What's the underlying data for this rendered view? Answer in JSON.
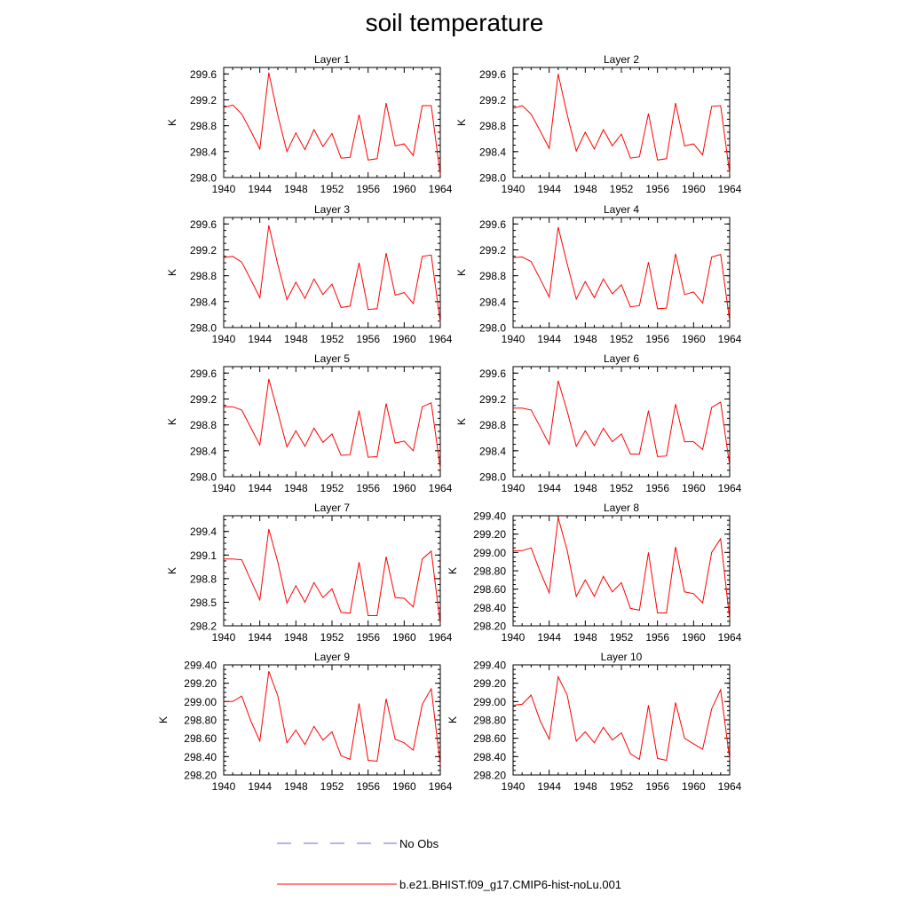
{
  "title": "soil temperature",
  "colors": {
    "series": "#ff0000",
    "obs": "#6a6acd",
    "axis": "#000000"
  },
  "legend": {
    "obs_label": "No Obs",
    "model_label": "b.e21.BHIST.f09_g17.CMIP6-hist-noLu.001"
  },
  "chart_data": [
    {
      "type": "line",
      "title": "Layer 1",
      "ylabel": "K",
      "xlim": [
        1940,
        1964
      ],
      "ylim": [
        298.0,
        299.7
      ],
      "xticks": [
        "1940",
        "1944",
        "1948",
        "1952",
        "1956",
        "1960",
        "1964"
      ],
      "yticks": [
        "298.0",
        "298.4",
        "298.8",
        "299.2",
        "299.6"
      ],
      "x": [
        1940,
        1941,
        1942,
        1943,
        1944,
        1945,
        1946,
        1947,
        1948,
        1949,
        1950,
        1951,
        1952,
        1953,
        1954,
        1955,
        1956,
        1957,
        1958,
        1959,
        1960,
        1961,
        1962,
        1963,
        1964
      ],
      "series": [
        {
          "name": "b.e21.BHIST.f09_g17.CMIP6-hist-noLu.001",
          "values": [
            299.08,
            299.12,
            298.98,
            298.72,
            298.44,
            299.62,
            298.96,
            298.4,
            298.69,
            298.43,
            298.74,
            298.48,
            298.68,
            298.3,
            298.31,
            298.97,
            298.27,
            298.29,
            299.15,
            298.49,
            298.52,
            298.34,
            299.11,
            299.11,
            298.04
          ]
        }
      ]
    },
    {
      "type": "line",
      "title": "Layer 2",
      "ylabel": "K",
      "xlim": [
        1940,
        1964
      ],
      "ylim": [
        298.0,
        299.7
      ],
      "xticks": [
        "1940",
        "1944",
        "1948",
        "1952",
        "1956",
        "1960",
        "1964"
      ],
      "yticks": [
        "298.0",
        "298.4",
        "298.8",
        "299.2",
        "299.6"
      ],
      "x": [
        1940,
        1941,
        1942,
        1943,
        1944,
        1945,
        1946,
        1947,
        1948,
        1949,
        1950,
        1951,
        1952,
        1953,
        1954,
        1955,
        1956,
        1957,
        1958,
        1959,
        1960,
        1961,
        1962,
        1963,
        1964
      ],
      "series": [
        {
          "name": "b.e21.BHIST.f09_g17.CMIP6-hist-noLu.001",
          "values": [
            299.07,
            299.11,
            298.98,
            298.72,
            298.45,
            299.6,
            298.97,
            298.41,
            298.7,
            298.44,
            298.74,
            298.49,
            298.67,
            298.3,
            298.32,
            298.99,
            298.27,
            298.29,
            299.15,
            298.49,
            298.52,
            298.35,
            299.1,
            299.11,
            298.06
          ]
        }
      ]
    },
    {
      "type": "line",
      "title": "Layer 3",
      "ylabel": "K",
      "xlim": [
        1940,
        1964
      ],
      "ylim": [
        298.0,
        299.7
      ],
      "xticks": [
        "1940",
        "1944",
        "1948",
        "1952",
        "1956",
        "1960",
        "1964"
      ],
      "yticks": [
        "298.0",
        "298.4",
        "298.8",
        "299.2",
        "299.6"
      ],
      "x": [
        1940,
        1941,
        1942,
        1943,
        1944,
        1945,
        1946,
        1947,
        1948,
        1949,
        1950,
        1951,
        1952,
        1953,
        1954,
        1955,
        1956,
        1957,
        1958,
        1959,
        1960,
        1961,
        1962,
        1963,
        1964
      ],
      "series": [
        {
          "name": "b.e21.BHIST.f09_g17.CMIP6-hist-noLu.001",
          "values": [
            299.08,
            299.1,
            299.01,
            298.74,
            298.46,
            299.58,
            298.97,
            298.43,
            298.7,
            298.45,
            298.75,
            298.51,
            298.67,
            298.31,
            298.33,
            299.0,
            298.28,
            298.29,
            299.15,
            298.5,
            298.54,
            298.37,
            299.1,
            299.12,
            298.08
          ]
        }
      ]
    },
    {
      "type": "line",
      "title": "Layer 4",
      "ylabel": "K",
      "xlim": [
        1940,
        1964
      ],
      "ylim": [
        298.0,
        299.7
      ],
      "xticks": [
        "1940",
        "1944",
        "1948",
        "1952",
        "1956",
        "1960",
        "1964"
      ],
      "yticks": [
        "298.0",
        "298.4",
        "298.8",
        "299.2",
        "299.6"
      ],
      "x": [
        1940,
        1941,
        1942,
        1943,
        1944,
        1945,
        1946,
        1947,
        1948,
        1949,
        1950,
        1951,
        1952,
        1953,
        1954,
        1955,
        1956,
        1957,
        1958,
        1959,
        1960,
        1961,
        1962,
        1963,
        1964
      ],
      "series": [
        {
          "name": "b.e21.BHIST.f09_g17.CMIP6-hist-noLu.001",
          "values": [
            299.08,
            299.09,
            299.02,
            298.75,
            298.47,
            299.55,
            298.98,
            298.44,
            298.71,
            298.46,
            298.75,
            298.52,
            298.66,
            298.32,
            298.34,
            299.01,
            298.29,
            298.3,
            299.14,
            298.51,
            298.55,
            298.38,
            299.09,
            299.13,
            298.1
          ]
        }
      ]
    },
    {
      "type": "line",
      "title": "Layer 5",
      "ylabel": "K",
      "xlim": [
        1940,
        1964
      ],
      "ylim": [
        298.0,
        299.7
      ],
      "xticks": [
        "1940",
        "1944",
        "1948",
        "1952",
        "1956",
        "1960",
        "1964"
      ],
      "yticks": [
        "298.0",
        "298.4",
        "298.8",
        "299.2",
        "299.6"
      ],
      "x": [
        1940,
        1941,
        1942,
        1943,
        1944,
        1945,
        1946,
        1947,
        1948,
        1949,
        1950,
        1951,
        1952,
        1953,
        1954,
        1955,
        1956,
        1957,
        1958,
        1959,
        1960,
        1961,
        1962,
        1963,
        1964
      ],
      "series": [
        {
          "name": "b.e21.BHIST.f09_g17.CMIP6-hist-noLu.001",
          "values": [
            299.08,
            299.08,
            299.03,
            298.76,
            298.49,
            299.51,
            298.99,
            298.46,
            298.71,
            298.47,
            298.75,
            298.53,
            298.66,
            298.33,
            298.34,
            299.02,
            298.3,
            298.31,
            299.13,
            298.52,
            298.55,
            298.4,
            299.08,
            299.14,
            298.13
          ]
        }
      ]
    },
    {
      "type": "line",
      "title": "Layer 6",
      "ylabel": "K",
      "xlim": [
        1940,
        1964
      ],
      "ylim": [
        298.0,
        299.7
      ],
      "xticks": [
        "1940",
        "1944",
        "1948",
        "1952",
        "1956",
        "1960",
        "1964"
      ],
      "yticks": [
        "298.0",
        "298.4",
        "298.8",
        "299.2",
        "299.6"
      ],
      "x": [
        1940,
        1941,
        1942,
        1943,
        1944,
        1945,
        1946,
        1947,
        1948,
        1949,
        1950,
        1951,
        1952,
        1953,
        1954,
        1955,
        1956,
        1957,
        1958,
        1959,
        1960,
        1961,
        1962,
        1963,
        1964
      ],
      "series": [
        {
          "name": "b.e21.BHIST.f09_g17.CMIP6-hist-noLu.001",
          "values": [
            299.06,
            299.06,
            299.03,
            298.77,
            298.5,
            299.48,
            299.01,
            298.47,
            298.71,
            298.48,
            298.75,
            298.54,
            298.66,
            298.35,
            298.35,
            299.02,
            298.31,
            298.32,
            299.12,
            298.54,
            298.54,
            298.42,
            299.07,
            299.15,
            298.17
          ]
        }
      ]
    },
    {
      "type": "line",
      "title": "Layer 7",
      "ylabel": "K",
      "xlim": [
        1940,
        1964
      ],
      "ylim": [
        298.2,
        299.6
      ],
      "xticks": [
        "1940",
        "1944",
        "1948",
        "1952",
        "1956",
        "1960",
        "1964"
      ],
      "yticks": [
        "298.2",
        "298.5",
        "298.8",
        "299.1",
        "299.4"
      ],
      "x": [
        1940,
        1941,
        1942,
        1943,
        1944,
        1945,
        1946,
        1947,
        1948,
        1949,
        1950,
        1951,
        1952,
        1953,
        1954,
        1955,
        1956,
        1957,
        1958,
        1959,
        1960,
        1961,
        1962,
        1963,
        1964
      ],
      "series": [
        {
          "name": "b.e21.BHIST.f09_g17.CMIP6-hist-noLu.001",
          "values": [
            299.05,
            299.05,
            299.04,
            298.78,
            298.53,
            299.43,
            299.01,
            298.49,
            298.71,
            298.5,
            298.75,
            298.56,
            298.67,
            298.37,
            298.36,
            299.01,
            298.33,
            298.33,
            299.08,
            298.56,
            298.55,
            298.44,
            299.05,
            299.15,
            298.22
          ]
        }
      ]
    },
    {
      "type": "line",
      "title": "Layer 8",
      "ylabel": "K",
      "xlim": [
        1940,
        1964
      ],
      "ylim": [
        298.2,
        299.4
      ],
      "xticks": [
        "1940",
        "1944",
        "1948",
        "1952",
        "1956",
        "1960",
        "1964"
      ],
      "yticks": [
        "298.20",
        "298.40",
        "298.60",
        "298.80",
        "299.00",
        "299.20",
        "299.40"
      ],
      "x": [
        1940,
        1941,
        1942,
        1943,
        1944,
        1945,
        1946,
        1947,
        1948,
        1949,
        1950,
        1951,
        1952,
        1953,
        1954,
        1955,
        1956,
        1957,
        1958,
        1959,
        1960,
        1961,
        1962,
        1963,
        1964
      ],
      "series": [
        {
          "name": "b.e21.BHIST.f09_g17.CMIP6-hist-noLu.001",
          "values": [
            299.02,
            299.02,
            299.05,
            298.79,
            298.56,
            299.38,
            299.02,
            298.52,
            298.7,
            298.52,
            298.74,
            298.57,
            298.67,
            298.39,
            298.37,
            299.0,
            298.34,
            298.34,
            299.06,
            298.57,
            298.55,
            298.45,
            299.0,
            299.15,
            298.27
          ]
        }
      ]
    },
    {
      "type": "line",
      "title": "Layer 9",
      "ylabel": "K",
      "xlim": [
        1940,
        1964
      ],
      "ylim": [
        298.2,
        299.4
      ],
      "xticks": [
        "1940",
        "1944",
        "1948",
        "1952",
        "1956",
        "1960",
        "1964"
      ],
      "yticks": [
        "298.20",
        "298.40",
        "298.60",
        "298.80",
        "299.00",
        "299.20",
        "299.40"
      ],
      "x": [
        1940,
        1941,
        1942,
        1943,
        1944,
        1945,
        1946,
        1947,
        1948,
        1949,
        1950,
        1951,
        1952,
        1953,
        1954,
        1955,
        1956,
        1957,
        1958,
        1959,
        1960,
        1961,
        1962,
        1963,
        1964
      ],
      "series": [
        {
          "name": "b.e21.BHIST.f09_g17.CMIP6-hist-noLu.001",
          "values": [
            299.0,
            299.0,
            299.06,
            298.79,
            298.57,
            299.33,
            299.06,
            298.55,
            298.69,
            298.53,
            298.73,
            298.58,
            298.67,
            298.41,
            298.37,
            298.98,
            298.36,
            298.35,
            299.03,
            298.59,
            298.55,
            298.47,
            298.97,
            299.14,
            298.31
          ]
        }
      ]
    },
    {
      "type": "line",
      "title": "Layer 10",
      "ylabel": "K",
      "xlim": [
        1940,
        1964
      ],
      "ylim": [
        298.2,
        299.4
      ],
      "xticks": [
        "1940",
        "1944",
        "1948",
        "1952",
        "1956",
        "1960",
        "1964"
      ],
      "yticks": [
        "298.20",
        "298.40",
        "298.60",
        "298.80",
        "299.00",
        "299.20",
        "299.40"
      ],
      "x": [
        1940,
        1941,
        1942,
        1943,
        1944,
        1945,
        1946,
        1947,
        1948,
        1949,
        1950,
        1951,
        1952,
        1953,
        1954,
        1955,
        1956,
        1957,
        1958,
        1959,
        1960,
        1961,
        1962,
        1963,
        1964
      ],
      "series": [
        {
          "name": "b.e21.BHIST.f09_g17.CMIP6-hist-noLu.001",
          "values": [
            298.96,
            298.97,
            299.07,
            298.79,
            298.59,
            299.27,
            299.07,
            298.57,
            298.67,
            298.55,
            298.72,
            298.58,
            298.66,
            298.43,
            298.37,
            298.96,
            298.38,
            298.36,
            298.99,
            298.6,
            298.54,
            298.48,
            298.92,
            299.13,
            298.37
          ]
        }
      ]
    }
  ]
}
